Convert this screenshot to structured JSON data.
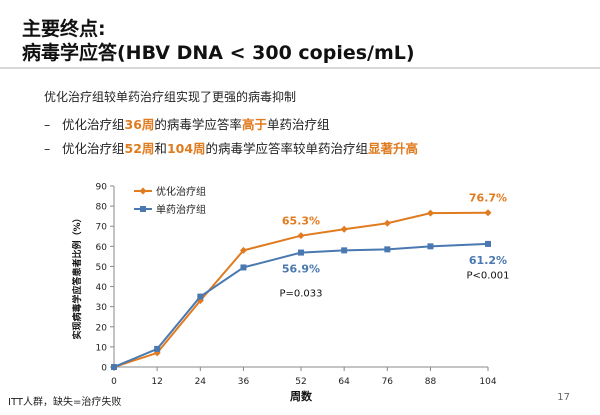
{
  "header": {
    "title": "主要终点:",
    "subtitle": "病毒学应答(HBV DNA < 300 copies/mL)"
  },
  "intro": "优化治疗组较单药治疗组实现了更强的病毒抑制",
  "bullets": [
    {
      "dash": "–",
      "p1": "优化治疗组",
      "h1": "36周",
      "p2": "的病毒学应答率",
      "h2": "高于",
      "p3": "单药治疗组"
    },
    {
      "dash": "–",
      "p1": "优化治疗组",
      "h1": "52周",
      "p2": "和",
      "h2": "104周",
      "p3": "的病毒学应答率较单药治疗组",
      "h3": "显著升高"
    }
  ],
  "footnote": "ITT人群，缺失=治疗失败",
  "page_number": "17",
  "colors": {
    "orange": "#e07b1f",
    "blue": "#4a78b0",
    "axis": "#888888"
  },
  "chart_data": {
    "type": "line",
    "x": [
      0,
      12,
      24,
      36,
      52,
      64,
      76,
      88,
      104
    ],
    "xticks": [
      "0",
      "12",
      "24",
      "36",
      "52",
      "64",
      "76",
      "88",
      "104"
    ],
    "yticks": [
      "0",
      "10",
      "20",
      "30",
      "40",
      "50",
      "60",
      "70",
      "80",
      "90"
    ],
    "xlim": [
      0,
      104
    ],
    "ylim": [
      0,
      90
    ],
    "xlabel": "周数",
    "ylabel": "实现病毒学应答患者比例（%）",
    "legend_position": "top-left",
    "series": [
      {
        "name": "优化治疗组",
        "color": "#e07b1f",
        "marker": "diamond",
        "values": [
          0,
          7,
          33,
          58,
          65.3,
          68.5,
          71.5,
          76.5,
          76.7
        ]
      },
      {
        "name": "单药治疗组",
        "color": "#4a78b0",
        "marker": "square",
        "values": [
          0,
          9,
          35,
          49.5,
          56.9,
          58,
          58.5,
          60,
          61.2
        ]
      }
    ],
    "annotations": [
      {
        "text": "65.3%",
        "x": 52,
        "y": 65.3,
        "series": 0,
        "pos": "above"
      },
      {
        "text": "76.7%",
        "x": 104,
        "y": 76.7,
        "series": 0,
        "pos": "above"
      },
      {
        "text": "56.9%",
        "x": 52,
        "y": 56.9,
        "series": 1,
        "pos": "below"
      },
      {
        "text": "61.2%",
        "x": 104,
        "y": 61.2,
        "series": 1,
        "pos": "below"
      }
    ],
    "pvalues": [
      {
        "text": "P=0.033",
        "x": 52,
        "y": 35
      },
      {
        "text": "P<0.001",
        "x": 104,
        "y": 44
      }
    ]
  }
}
